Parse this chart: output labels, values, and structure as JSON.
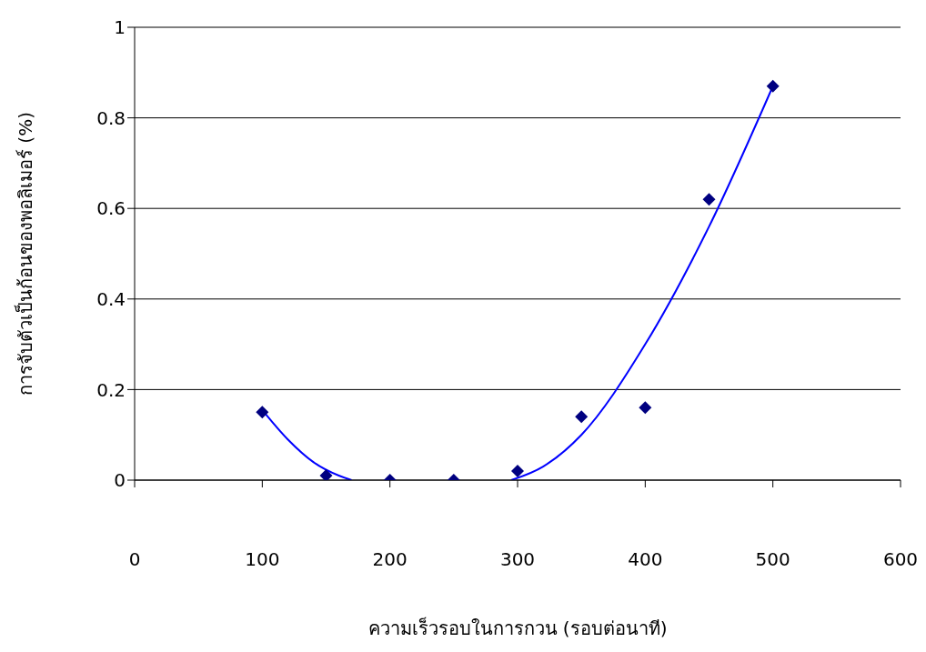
{
  "chart_data": {
    "type": "scatter",
    "xlabel": "ความเร็วรอบในการกวน (รอบต่อนาที)",
    "ylabel": "การจับตัวเป็นก้อนของพอลิเมอร์ (%)",
    "xlim": [
      0,
      600
    ],
    "xticks": [
      0,
      100,
      200,
      300,
      400,
      500,
      600
    ],
    "ylim": [
      0,
      1
    ],
    "yticks": [
      0,
      0.2,
      0.4,
      0.6,
      0.8,
      1
    ],
    "grid": "y",
    "series": [
      {
        "marker": "diamond",
        "color": "#000080",
        "x": [
          100,
          150,
          200,
          250,
          300,
          350,
          400,
          450,
          500
        ],
        "values": [
          0.15,
          0.01,
          0,
          0,
          0.02,
          0.14,
          0.16,
          0.62,
          0.87
        ]
      },
      {
        "type": "line",
        "marker": "none",
        "color": "#0000ff",
        "x": [
          100,
          120,
          140,
          160,
          170,
          230,
          295,
          320,
          350,
          400,
          450,
          500
        ],
        "values": [
          0.155,
          0.09,
          0.04,
          0.01,
          0,
          null,
          0,
          0.03,
          0.1,
          0.3,
          0.56,
          0.87
        ]
      }
    ]
  }
}
